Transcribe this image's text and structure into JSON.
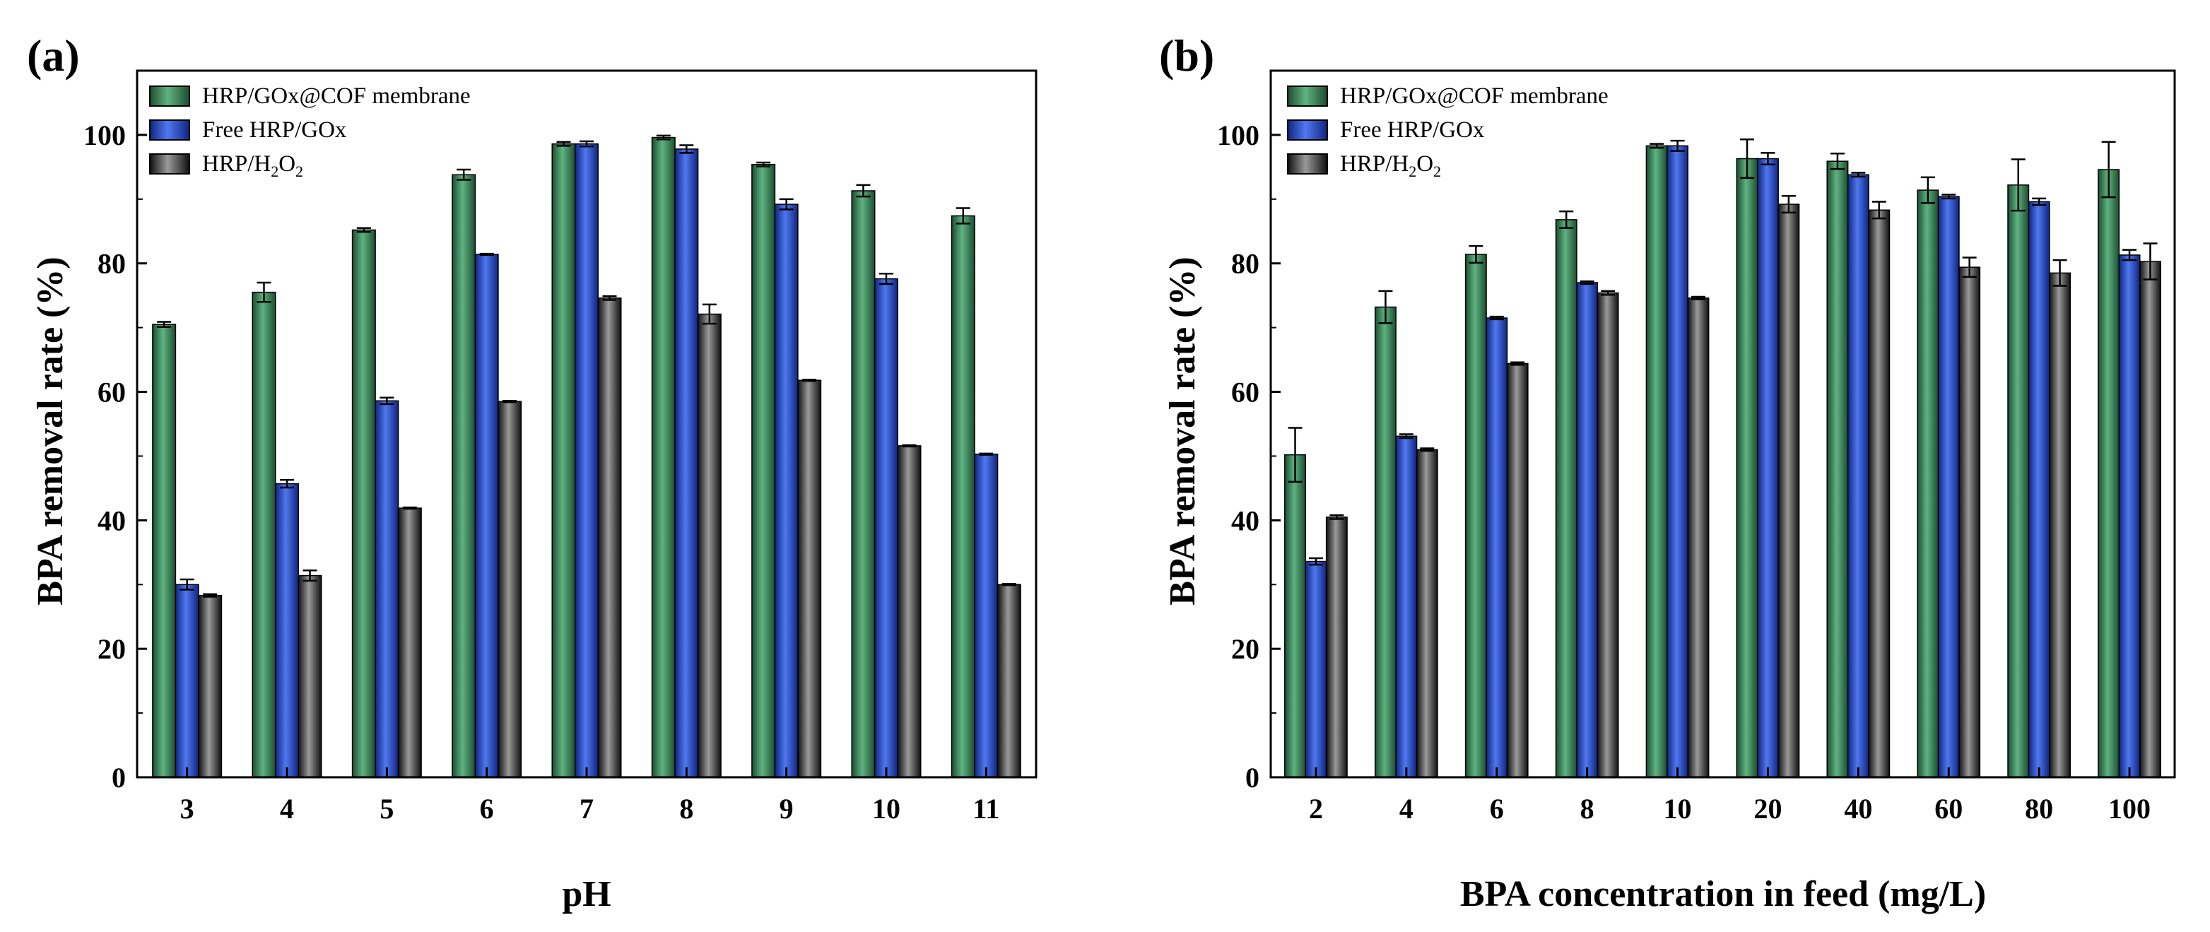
{
  "colors": {
    "series": [
      "#2e7d4f",
      "#1f46c8",
      "#3a3a3a"
    ],
    "series_highlight": [
      "#8fd3a7",
      "#8fb2ff",
      "#d9d9d9"
    ],
    "series_shadow": [
      "#1b4d30",
      "#0f2580",
      "#101010"
    ]
  },
  "chart_data": [
    {
      "type": "bar",
      "panel_label": "(a)",
      "title": "",
      "xlabel": "pH",
      "ylabel": "BPA removal rate (%)",
      "ylim": [
        0,
        110
      ],
      "yticks": [
        0,
        20,
        40,
        60,
        80,
        100
      ],
      "grid": false,
      "legend_position": "top-left",
      "categories": [
        "3",
        "4",
        "5",
        "6",
        "7",
        "8",
        "9",
        "10",
        "11"
      ],
      "series": [
        {
          "name": "HRP/GOx@COF membrane",
          "values": [
            70.5,
            75.5,
            85.2,
            93.8,
            98.6,
            99.6,
            95.4,
            91.3,
            87.4
          ],
          "errors": [
            0.4,
            1.5,
            0.3,
            0.8,
            0.3,
            0.3,
            0.3,
            0.9,
            1.2
          ]
        },
        {
          "name": "Free HRP/GOx",
          "values": [
            30.0,
            45.7,
            58.6,
            81.4,
            98.6,
            97.8,
            89.2,
            77.6,
            50.3
          ],
          "errors": [
            0.8,
            0.6,
            0.5,
            0.1,
            0.4,
            0.6,
            0.8,
            0.8,
            0.1
          ]
        },
        {
          "name": "HRP/H₂O₂",
          "name_main": "HRP/H",
          "name_sub1": "2",
          "name_mid": "O",
          "name_sub2": "2",
          "values": [
            28.3,
            31.4,
            41.9,
            58.5,
            74.6,
            72.1,
            61.8,
            51.6,
            30.0
          ],
          "errors": [
            0.2,
            0.8,
            0.1,
            0.1,
            0.3,
            1.5,
            0.1,
            0.1,
            0.1
          ]
        }
      ]
    },
    {
      "type": "bar",
      "panel_label": "(b)",
      "title": "",
      "xlabel": "BPA concentration in feed (mg/L)",
      "ylabel": "BPA removal rate (%)",
      "ylim": [
        0,
        110
      ],
      "yticks": [
        0,
        20,
        40,
        60,
        80,
        100
      ],
      "grid": false,
      "legend_position": "top-left",
      "categories": [
        "2",
        "4",
        "6",
        "8",
        "10",
        "20",
        "40",
        "60",
        "80",
        "100"
      ],
      "series": [
        {
          "name": "HRP/GOx@COF membrane",
          "values": [
            50.2,
            73.2,
            81.4,
            86.8,
            98.3,
            96.3,
            95.9,
            91.4,
            92.2,
            94.6
          ],
          "errors": [
            4.2,
            2.5,
            1.3,
            1.3,
            0.3,
            3.0,
            1.2,
            2.0,
            4.0,
            4.3
          ]
        },
        {
          "name": "Free HRP/GOx",
          "values": [
            33.6,
            53.1,
            71.5,
            77.0,
            98.3,
            96.3,
            93.8,
            90.4,
            89.6,
            81.3
          ],
          "errors": [
            0.5,
            0.3,
            0.2,
            0.2,
            0.8,
            0.9,
            0.3,
            0.3,
            0.5,
            0.8
          ]
        },
        {
          "name": "HRP/H₂O₂",
          "name_main": "HRP/H",
          "name_sub1": "2",
          "name_mid": "O",
          "name_sub2": "2",
          "values": [
            40.5,
            51.0,
            64.4,
            75.4,
            74.6,
            89.2,
            88.3,
            79.4,
            78.5,
            80.3
          ],
          "errors": [
            0.3,
            0.2,
            0.2,
            0.3,
            0.2,
            1.3,
            1.3,
            1.5,
            2.0,
            2.8
          ]
        }
      ]
    }
  ]
}
